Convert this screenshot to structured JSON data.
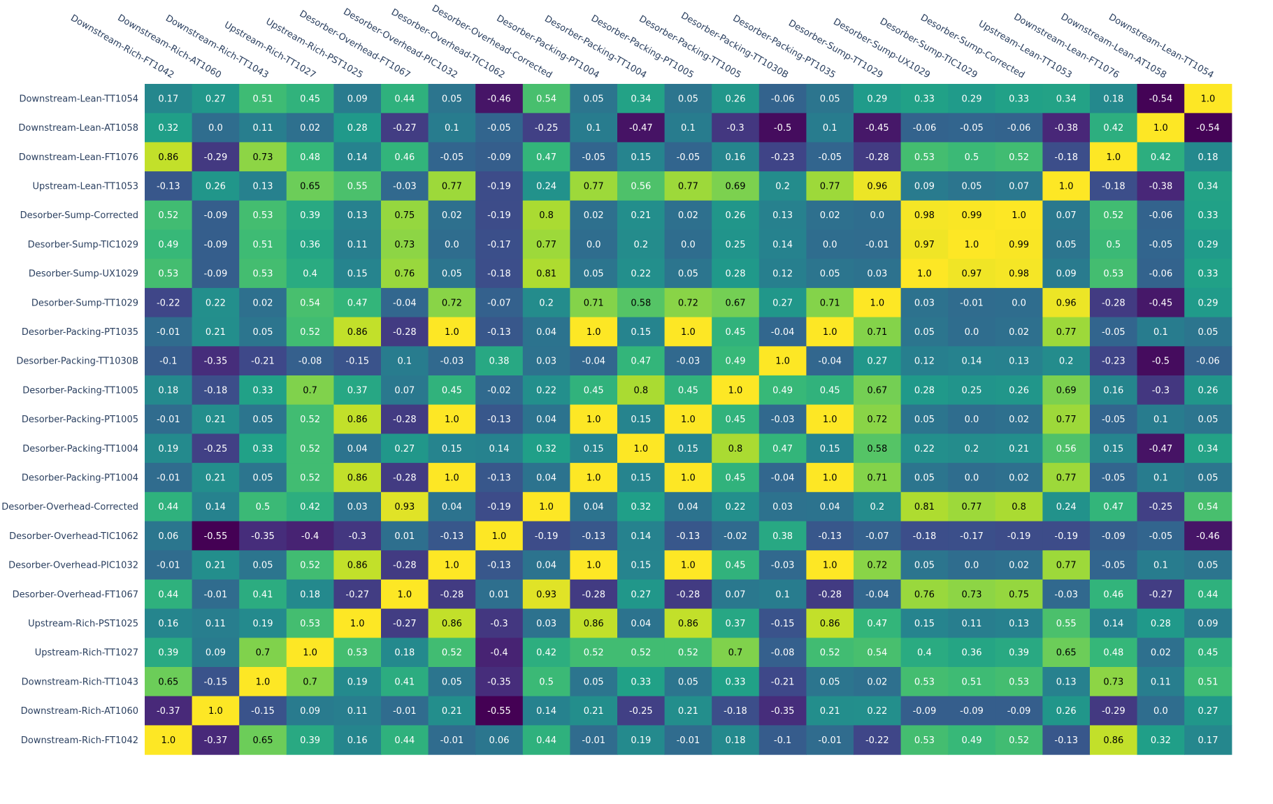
{
  "chart_data": {
    "type": "heatmap",
    "title": "",
    "xlabel": "",
    "ylabel": "",
    "x": [
      "Downstream-Rich-FT1042",
      "Downstream-Rich-AT1060",
      "Downstream-Rich-TT1043",
      "Upstream-Rich-TT1027",
      "Upstream-Rich-PST1025",
      "Desorber-Overhead-FT1067",
      "Desorber-Overhead-PIC1032",
      "Desorber-Overhead-TIC1062",
      "Desorber-Overhead-Corrected",
      "Desorber-Packing-PT1004",
      "Desorber-Packing-TT1004",
      "Desorber-Packing-PT1005",
      "Desorber-Packing-TT1005",
      "Desorber-Packing-TT1030B",
      "Desorber-Packing-PT1035",
      "Desorber-Sump-TT1029",
      "Desorber-Sump-UX1029",
      "Desorber-Sump-TIC1029",
      "Desorber-Sump-Corrected",
      "Upstream-Lean-TT1053",
      "Downstream-Lean-FT1076",
      "Downstream-Lean-AT1058",
      "Downstream-Lean-TT1054"
    ],
    "y": [
      "Downstream-Lean-TT1054",
      "Downstream-Lean-AT1058",
      "Downstream-Lean-FT1076",
      "Upstream-Lean-TT1053",
      "Desorber-Sump-Corrected",
      "Desorber-Sump-TIC1029",
      "Desorber-Sump-UX1029",
      "Desorber-Sump-TT1029",
      "Desorber-Packing-PT1035",
      "Desorber-Packing-TT1030B",
      "Desorber-Packing-TT1005",
      "Desorber-Packing-PT1005",
      "Desorber-Packing-TT1004",
      "Desorber-Packing-PT1004",
      "Desorber-Overhead-Corrected",
      "Desorber-Overhead-TIC1062",
      "Desorber-Overhead-PIC1032",
      "Desorber-Overhead-FT1067",
      "Upstream-Rich-PST1025",
      "Upstream-Rich-TT1027",
      "Downstream-Rich-TT1043",
      "Downstream-Rich-AT1060",
      "Downstream-Rich-FT1042"
    ],
    "z": [
      [
        "0.17",
        "0.27",
        "0.51",
        "0.45",
        "0.09",
        "0.44",
        "0.05",
        "-0.46",
        "0.54",
        "0.05",
        "0.34",
        "0.05",
        "0.26",
        "-0.06",
        "0.05",
        "0.29",
        "0.33",
        "0.29",
        "0.33",
        "0.34",
        "0.18",
        "-0.54",
        "1.0"
      ],
      [
        "0.32",
        "0.0",
        "0.11",
        "0.02",
        "0.28",
        "-0.27",
        "0.1",
        "-0.05",
        "-0.25",
        "0.1",
        "-0.47",
        "0.1",
        "-0.3",
        "-0.5",
        "0.1",
        "-0.45",
        "-0.06",
        "-0.05",
        "-0.06",
        "-0.38",
        "0.42",
        "1.0",
        "-0.54"
      ],
      [
        "0.86",
        "-0.29",
        "0.73",
        "0.48",
        "0.14",
        "0.46",
        "-0.05",
        "-0.09",
        "0.47",
        "-0.05",
        "0.15",
        "-0.05",
        "0.16",
        "-0.23",
        "-0.05",
        "-0.28",
        "0.53",
        "0.5",
        "0.52",
        "-0.18",
        "1.0",
        "0.42",
        "0.18"
      ],
      [
        "-0.13",
        "0.26",
        "0.13",
        "0.65",
        "0.55",
        "-0.03",
        "0.77",
        "-0.19",
        "0.24",
        "0.77",
        "0.56",
        "0.77",
        "0.69",
        "0.2",
        "0.77",
        "0.96",
        "0.09",
        "0.05",
        "0.07",
        "1.0",
        "-0.18",
        "-0.38",
        "0.34"
      ],
      [
        "0.52",
        "-0.09",
        "0.53",
        "0.39",
        "0.13",
        "0.75",
        "0.02",
        "-0.19",
        "0.8",
        "0.02",
        "0.21",
        "0.02",
        "0.26",
        "0.13",
        "0.02",
        "0.0",
        "0.98",
        "0.99",
        "1.0",
        "0.07",
        "0.52",
        "-0.06",
        "0.33"
      ],
      [
        "0.49",
        "-0.09",
        "0.51",
        "0.36",
        "0.11",
        "0.73",
        "0.0",
        "-0.17",
        "0.77",
        "0.0",
        "0.2",
        "0.0",
        "0.25",
        "0.14",
        "0.0",
        "-0.01",
        "0.97",
        "1.0",
        "0.99",
        "0.05",
        "0.5",
        "-0.05",
        "0.29"
      ],
      [
        "0.53",
        "-0.09",
        "0.53",
        "0.4",
        "0.15",
        "0.76",
        "0.05",
        "-0.18",
        "0.81",
        "0.05",
        "0.22",
        "0.05",
        "0.28",
        "0.12",
        "0.05",
        "0.03",
        "1.0",
        "0.97",
        "0.98",
        "0.09",
        "0.53",
        "-0.06",
        "0.33"
      ],
      [
        "-0.22",
        "0.22",
        "0.02",
        "0.54",
        "0.47",
        "-0.04",
        "0.72",
        "-0.07",
        "0.2",
        "0.71",
        "0.58",
        "0.72",
        "0.67",
        "0.27",
        "0.71",
        "1.0",
        "0.03",
        "-0.01",
        "0.0",
        "0.96",
        "-0.28",
        "-0.45",
        "0.29"
      ],
      [
        "-0.01",
        "0.21",
        "0.05",
        "0.52",
        "0.86",
        "-0.28",
        "1.0",
        "-0.13",
        "0.04",
        "1.0",
        "0.15",
        "1.0",
        "0.45",
        "-0.04",
        "1.0",
        "0.71",
        "0.05",
        "0.0",
        "0.02",
        "0.77",
        "-0.05",
        "0.1",
        "0.05"
      ],
      [
        "-0.1",
        "-0.35",
        "-0.21",
        "-0.08",
        "-0.15",
        "0.1",
        "-0.03",
        "0.38",
        "0.03",
        "-0.04",
        "0.47",
        "-0.03",
        "0.49",
        "1.0",
        "-0.04",
        "0.27",
        "0.12",
        "0.14",
        "0.13",
        "0.2",
        "-0.23",
        "-0.5",
        "-0.06"
      ],
      [
        "0.18",
        "-0.18",
        "0.33",
        "0.7",
        "0.37",
        "0.07",
        "0.45",
        "-0.02",
        "0.22",
        "0.45",
        "0.8",
        "0.45",
        "1.0",
        "0.49",
        "0.45",
        "0.67",
        "0.28",
        "0.25",
        "0.26",
        "0.69",
        "0.16",
        "-0.3",
        "0.26"
      ],
      [
        "-0.01",
        "0.21",
        "0.05",
        "0.52",
        "0.86",
        "-0.28",
        "1.0",
        "-0.13",
        "0.04",
        "1.0",
        "0.15",
        "1.0",
        "0.45",
        "-0.03",
        "1.0",
        "0.72",
        "0.05",
        "0.0",
        "0.02",
        "0.77",
        "-0.05",
        "0.1",
        "0.05"
      ],
      [
        "0.19",
        "-0.25",
        "0.33",
        "0.52",
        "0.04",
        "0.27",
        "0.15",
        "0.14",
        "0.32",
        "0.15",
        "1.0",
        "0.15",
        "0.8",
        "0.47",
        "0.15",
        "0.58",
        "0.22",
        "0.2",
        "0.21",
        "0.56",
        "0.15",
        "-0.47",
        "0.34"
      ],
      [
        "-0.01",
        "0.21",
        "0.05",
        "0.52",
        "0.86",
        "-0.28",
        "1.0",
        "-0.13",
        "0.04",
        "1.0",
        "0.15",
        "1.0",
        "0.45",
        "-0.04",
        "1.0",
        "0.71",
        "0.05",
        "0.0",
        "0.02",
        "0.77",
        "-0.05",
        "0.1",
        "0.05"
      ],
      [
        "0.44",
        "0.14",
        "0.5",
        "0.42",
        "0.03",
        "0.93",
        "0.04",
        "-0.19",
        "1.0",
        "0.04",
        "0.32",
        "0.04",
        "0.22",
        "0.03",
        "0.04",
        "0.2",
        "0.81",
        "0.77",
        "0.8",
        "0.24",
        "0.47",
        "-0.25",
        "0.54"
      ],
      [
        "0.06",
        "-0.55",
        "-0.35",
        "-0.4",
        "-0.3",
        "0.01",
        "-0.13",
        "1.0",
        "-0.19",
        "-0.13",
        "0.14",
        "-0.13",
        "-0.02",
        "0.38",
        "-0.13",
        "-0.07",
        "-0.18",
        "-0.17",
        "-0.19",
        "-0.19",
        "-0.09",
        "-0.05",
        "-0.46"
      ],
      [
        "-0.01",
        "0.21",
        "0.05",
        "0.52",
        "0.86",
        "-0.28",
        "1.0",
        "-0.13",
        "0.04",
        "1.0",
        "0.15",
        "1.0",
        "0.45",
        "-0.03",
        "1.0",
        "0.72",
        "0.05",
        "0.0",
        "0.02",
        "0.77",
        "-0.05",
        "0.1",
        "0.05"
      ],
      [
        "0.44",
        "-0.01",
        "0.41",
        "0.18",
        "-0.27",
        "1.0",
        "-0.28",
        "0.01",
        "0.93",
        "-0.28",
        "0.27",
        "-0.28",
        "0.07",
        "0.1",
        "-0.28",
        "-0.04",
        "0.76",
        "0.73",
        "0.75",
        "-0.03",
        "0.46",
        "-0.27",
        "0.44"
      ],
      [
        "0.16",
        "0.11",
        "0.19",
        "0.53",
        "1.0",
        "-0.27",
        "0.86",
        "-0.3",
        "0.03",
        "0.86",
        "0.04",
        "0.86",
        "0.37",
        "-0.15",
        "0.86",
        "0.47",
        "0.15",
        "0.11",
        "0.13",
        "0.55",
        "0.14",
        "0.28",
        "0.09"
      ],
      [
        "0.39",
        "0.09",
        "0.7",
        "1.0",
        "0.53",
        "0.18",
        "0.52",
        "-0.4",
        "0.42",
        "0.52",
        "0.52",
        "0.52",
        "0.7",
        "-0.08",
        "0.52",
        "0.54",
        "0.4",
        "0.36",
        "0.39",
        "0.65",
        "0.48",
        "0.02",
        "0.45"
      ],
      [
        "0.65",
        "-0.15",
        "1.0",
        "0.7",
        "0.19",
        "0.41",
        "0.05",
        "-0.35",
        "0.5",
        "0.05",
        "0.33",
        "0.05",
        "0.33",
        "-0.21",
        "0.05",
        "0.02",
        "0.53",
        "0.51",
        "0.53",
        "0.13",
        "0.73",
        "0.11",
        "0.51"
      ],
      [
        "-0.37",
        "1.0",
        "-0.15",
        "0.09",
        "0.11",
        "-0.01",
        "0.21",
        "-0.55",
        "0.14",
        "0.21",
        "-0.25",
        "0.21",
        "-0.18",
        "-0.35",
        "0.21",
        "0.22",
        "-0.09",
        "-0.09",
        "-0.09",
        "0.26",
        "-0.29",
        "0.0",
        "0.27"
      ],
      [
        "1.0",
        "-0.37",
        "0.65",
        "0.39",
        "0.16",
        "0.44",
        "-0.01",
        "0.06",
        "0.44",
        "-0.01",
        "0.19",
        "-0.01",
        "0.18",
        "-0.1",
        "-0.01",
        "-0.22",
        "0.53",
        "0.49",
        "0.52",
        "-0.13",
        "0.86",
        "0.32",
        "0.17"
      ]
    ],
    "zrange": [
      -0.55,
      1.0
    ],
    "colorscale": "viridis",
    "colors": [
      "#440154",
      "#482878",
      "#3e4989",
      "#31688e",
      "#26828e",
      "#1f9e89",
      "#35b779",
      "#6ece58",
      "#b5de2b",
      "#fde725"
    ],
    "cell_text_colors": {
      "dark": "#ffffff",
      "light": "#000000"
    },
    "grid": false,
    "legend": "none"
  }
}
